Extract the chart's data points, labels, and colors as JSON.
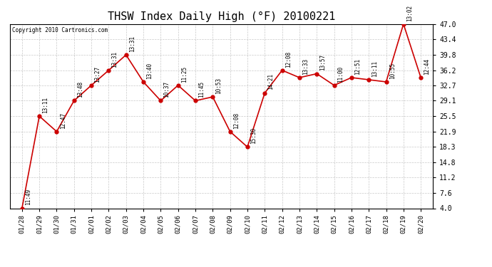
{
  "title": "THSW Index Daily High (°F) 20100221",
  "copyright": "Copyright 2010 Cartronics.com",
  "x_labels": [
    "01/28",
    "01/29",
    "01/30",
    "01/31",
    "02/01",
    "02/02",
    "02/03",
    "02/04",
    "02/05",
    "02/06",
    "02/07",
    "02/08",
    "02/09",
    "02/10",
    "02/11",
    "02/12",
    "02/13",
    "02/14",
    "02/15",
    "02/16",
    "02/17",
    "02/18",
    "02/19",
    "02/20"
  ],
  "y_values": [
    4.0,
    25.5,
    21.9,
    29.1,
    32.7,
    36.2,
    39.8,
    33.5,
    29.1,
    32.7,
    29.1,
    30.0,
    21.9,
    18.3,
    30.9,
    36.2,
    34.5,
    35.4,
    32.7,
    34.5,
    34.0,
    33.5,
    47.0,
    34.5
  ],
  "time_labels": [
    "11:49",
    "13:11",
    "12:47",
    "13:48",
    "13:27",
    "13:31",
    "13:31",
    "13:40",
    "10:37",
    "11:25",
    "11:45",
    "10:53",
    "12:08",
    "15:30",
    "14:21",
    "12:08",
    "13:33",
    "13:57",
    "11:00",
    "12:51",
    "13:11",
    "10:55",
    "13:02",
    "12:44"
  ],
  "y_ticks": [
    4.0,
    7.6,
    11.2,
    14.8,
    18.3,
    21.9,
    25.5,
    29.1,
    32.7,
    36.2,
    39.8,
    43.4,
    47.0
  ],
  "ylim": [
    4.0,
    47.0
  ],
  "line_color": "#cc0000",
  "marker_color": "#cc0000",
  "bg_color": "#ffffff",
  "grid_color": "#bbbbbb",
  "title_fontsize": 11,
  "label_fontsize": 7
}
